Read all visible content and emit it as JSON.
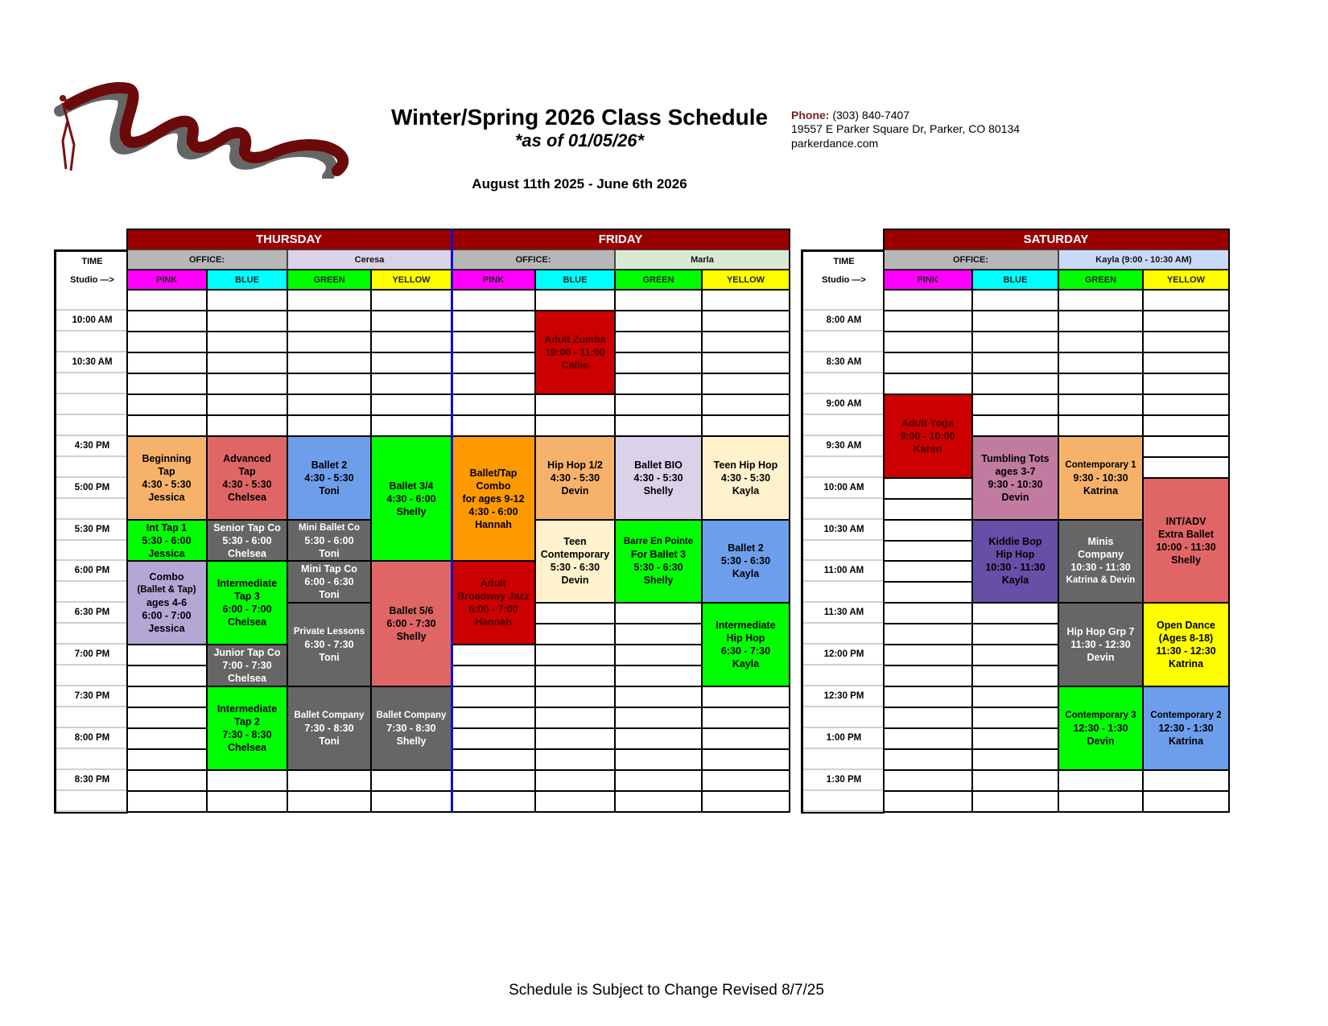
{
  "header": {
    "title": "Winter/Spring 2026 Class Schedule",
    "subtitle": "*as of 01/05/26*",
    "date_range": "August 11th 2025 - June 6th 2026",
    "contact": {
      "phone_label": "Phone:",
      "phone": "(303) 840-7407",
      "address": "19557 E Parker Square Dr, Parker, CO 80134",
      "website": "parkerdance.com"
    },
    "logo_colors": {
      "ribbon": "#6b0a0a",
      "shadow": "#666666"
    }
  },
  "footer": "Schedule is Subject to Change Revised 8/7/25",
  "time_header": {
    "time": "TIME",
    "studio": "Studio —>"
  },
  "studios": [
    {
      "name": "PINK",
      "color": "#ff00ff"
    },
    {
      "name": "BLUE",
      "color": "#00ffff"
    },
    {
      "name": "GREEN",
      "color": "#00ff00"
    },
    {
      "name": "YELLOW",
      "color": "#ffff00"
    }
  ],
  "tables": [
    {
      "time_labels": [
        "",
        "10:00 AM",
        "",
        "10:30 AM",
        "",
        "",
        "",
        "4:30 PM",
        "",
        "5:00 PM",
        "",
        "5:30 PM",
        "",
        "6:00 PM",
        "",
        "6:30 PM",
        "",
        "7:00 PM",
        "",
        "7:30 PM",
        "",
        "8:00 PM",
        "",
        "8:30 PM",
        ""
      ],
      "days": [
        {
          "name": "THURSDAY",
          "office": [
            {
              "label": "OFFICE:",
              "color": "#b7b7b7"
            },
            {
              "label": "Ceresa",
              "color": "#d9d2e9"
            }
          ],
          "classes": [
            {
              "studio": 0,
              "start": "4:30 PM",
              "end": "5:30 PM",
              "lines": [
                "Beginning",
                "Tap",
                "4:30 - 5:30",
                "Jessica"
              ],
              "color": "#f6b26b",
              "text_color": "#000000"
            },
            {
              "studio": 0,
              "start": "5:30 PM",
              "end": "6:00 PM",
              "lines": [
                "Int Tap 1",
                "5:30 - 6:00",
                "Jessica"
              ],
              "color": "#00ff00",
              "text_color": "#000000"
            },
            {
              "studio": 0,
              "start": "6:00 PM",
              "end": "7:00 PM",
              "lines": [
                "Combo",
                "(Ballet & Tap)",
                "ages 4-6",
                "6:00 - 7:00",
                "Jessica"
              ],
              "color": "#b4a7d6",
              "text_color": "#000000"
            },
            {
              "studio": 1,
              "start": "4:30 PM",
              "end": "5:30 PM",
              "lines": [
                "Advanced",
                "Tap",
                "4:30 - 5:30",
                "Chelsea"
              ],
              "color": "#e06666",
              "text_color": "#000000"
            },
            {
              "studio": 1,
              "start": "5:30 PM",
              "end": "6:00 PM",
              "lines": [
                "Senior Tap Co",
                "5:30 - 6:00",
                "Chelsea"
              ],
              "color": "#666666",
              "text_color": "#ffffff"
            },
            {
              "studio": 1,
              "start": "6:00 PM",
              "end": "7:00 PM",
              "lines": [
                "Intermediate",
                "Tap 3",
                "6:00 - 7:00",
                "Chelsea"
              ],
              "color": "#00ff00",
              "text_color": "#000000"
            },
            {
              "studio": 1,
              "start": "7:00 PM",
              "end": "7:30 PM",
              "lines": [
                "Junior Tap Co",
                "7:00 - 7:30",
                "Chelsea"
              ],
              "color": "#666666",
              "text_color": "#ffffff"
            },
            {
              "studio": 1,
              "start": "7:30 PM",
              "end": "8:30 PM",
              "lines": [
                "Intermediate",
                "Tap 2",
                "7:30 - 8:30",
                "Chelsea"
              ],
              "color": "#00ff00",
              "text_color": "#000000"
            },
            {
              "studio": 2,
              "start": "4:30 PM",
              "end": "5:30 PM",
              "lines": [
                "Ballet 2",
                "4:30 - 5:30",
                "Toni"
              ],
              "color": "#6d9eeb",
              "text_color": "#000000"
            },
            {
              "studio": 2,
              "start": "5:30 PM",
              "end": "6:00 PM",
              "lines": [
                "Mini Ballet Co",
                "5:30 - 6:00",
                "Toni"
              ],
              "color": "#666666",
              "text_color": "#ffffff"
            },
            {
              "studio": 2,
              "start": "6:00 PM",
              "end": "6:30 PM",
              "lines": [
                "Mini Tap Co",
                "6:00 - 6:30",
                "Toni"
              ],
              "color": "#666666",
              "text_color": "#ffffff"
            },
            {
              "studio": 2,
              "start": "6:30 PM",
              "end": "7:30 PM",
              "lines": [
                "Private Lessons",
                "6:30 - 7:30",
                "Toni"
              ],
              "color": "#666666",
              "text_color": "#ffffff"
            },
            {
              "studio": 2,
              "start": "7:30 PM",
              "end": "8:30 PM",
              "lines": [
                "Ballet Company",
                "7:30 - 8:30",
                "Toni"
              ],
              "color": "#666666",
              "text_color": "#ffffff"
            },
            {
              "studio": 3,
              "start": "4:30 PM",
              "end": "6:00 PM",
              "lines": [
                "Ballet 3/4",
                "4:30 - 6:00",
                "Shelly"
              ],
              "color": "#00ff00",
              "text_color": "#000000"
            },
            {
              "studio": 3,
              "start": "6:00 PM",
              "end": "7:30 PM",
              "lines": [
                "Ballet 5/6",
                "6:00 - 7:30",
                "Shelly"
              ],
              "color": "#e06666",
              "text_color": "#000000"
            },
            {
              "studio": 3,
              "start": "7:30 PM",
              "end": "8:30 PM",
              "lines": [
                "Ballet Company",
                "7:30 - 8:30",
                "Shelly"
              ],
              "color": "#666666",
              "text_color": "#ffffff"
            }
          ]
        },
        {
          "name": "FRIDAY",
          "office": [
            {
              "label": "OFFICE:",
              "color": "#b7b7b7"
            },
            {
              "label": "Marla",
              "color": "#d9ead3"
            }
          ],
          "classes": [
            {
              "studio": 0,
              "start": "4:30 PM",
              "end": "6:00 PM",
              "lines": [
                "Ballet/Tap",
                "Combo",
                "for ages 9-12",
                "4:30 - 6:00",
                "Hannah"
              ],
              "color": "#ff9900",
              "text_color": "#000000"
            },
            {
              "studio": 0,
              "start": "6:00 PM",
              "end": "7:00 PM",
              "lines": [
                "Adult",
                "Broadway Jazz",
                "6:00 - 7:00",
                "Hannah"
              ],
              "color": "#cc0000",
              "text_color": "#4a0000"
            },
            {
              "studio": 1,
              "start": "10:00 AM",
              "end": "11:00 AM",
              "lines": [
                "Adult Zumba",
                "10:00 - 11:00",
                "Callie"
              ],
              "color": "#cc0000",
              "text_color": "#4a0000"
            },
            {
              "studio": 1,
              "start": "4:30 PM",
              "end": "5:30 PM",
              "lines": [
                "Hip Hop 1/2",
                "4:30 - 5:30",
                "Devin"
              ],
              "color": "#f6b26b",
              "text_color": "#000000"
            },
            {
              "studio": 1,
              "start": "5:30 PM",
              "end": "6:30 PM",
              "lines": [
                "Teen",
                "Contemporary",
                "5:30 - 6:30",
                "Devin"
              ],
              "color": "#fff2cc",
              "text_color": "#000000"
            },
            {
              "studio": 2,
              "start": "4:30 PM",
              "end": "5:30 PM",
              "lines": [
                "Ballet BIO",
                "4:30 - 5:30",
                "Shelly"
              ],
              "color": "#d9d2e9",
              "text_color": "#000000"
            },
            {
              "studio": 2,
              "start": "5:30 PM",
              "end": "6:30 PM",
              "lines": [
                "Barre En Pointe",
                "For Ballet 3",
                "5:30 - 6:30",
                "Shelly"
              ],
              "color": "#00ff00",
              "text_color": "#000000"
            },
            {
              "studio": 3,
              "start": "4:30 PM",
              "end": "5:30 PM",
              "lines": [
                "Teen Hip Hop",
                "4:30 - 5:30",
                "Kayla"
              ],
              "color": "#fff2cc",
              "text_color": "#000000"
            },
            {
              "studio": 3,
              "start": "5:30 PM",
              "end": "6:30 PM",
              "lines": [
                "Ballet 2",
                "5:30 - 6:30",
                "Kayla"
              ],
              "color": "#6d9eeb",
              "text_color": "#000000"
            },
            {
              "studio": 3,
              "start": "6:30 PM",
              "end": "7:30 PM",
              "lines": [
                "Intermediate",
                "Hip Hop",
                "6:30 - 7:30",
                "Kayla"
              ],
              "color": "#00ff00",
              "text_color": "#000000"
            }
          ]
        }
      ]
    },
    {
      "time_labels": [
        "",
        "8:00 AM",
        "",
        "8:30 AM",
        "",
        "9:00 AM",
        "",
        "9:30 AM",
        "",
        "10:00 AM",
        "",
        "10:30 AM",
        "",
        "11:00 AM",
        "",
        "11:30 AM",
        "",
        "12:00 PM",
        "",
        "12:30 PM",
        "",
        "1:00 PM",
        "",
        "1:30 PM",
        ""
      ],
      "days": [
        {
          "name": "SATURDAY",
          "office": [
            {
              "label": "OFFICE:",
              "color": "#b7b7b7"
            },
            {
              "label": "Kayla (9:00 - 10:30 AM)",
              "color": "#c9daf8"
            }
          ],
          "classes": [
            {
              "studio": 0,
              "start": "9:00 AM",
              "end": "10:00 AM",
              "lines": [
                "Adult Yoga",
                "9:00 - 10:00",
                "Karen"
              ],
              "color": "#cc0000",
              "text_color": "#4a0000"
            },
            {
              "studio": 1,
              "start": "9:30 AM",
              "end": "10:30 AM",
              "lines": [
                "Tumbling Tots",
                "ages 3-7",
                "9:30 - 10:30",
                "Devin"
              ],
              "color": "#c27ba0",
              "text_color": "#000000"
            },
            {
              "studio": 1,
              "start": "10:30 AM",
              "end": "11:30 AM",
              "lines": [
                "Kiddie Bop",
                "Hip Hop",
                "10:30 - 11:30",
                "Kayla"
              ],
              "color": "#674ea7",
              "text_color": "#000000"
            },
            {
              "studio": 2,
              "start": "9:30 AM",
              "end": "10:30 AM",
              "lines": [
                "Contemporary 1",
                "9:30 - 10:30",
                "Katrina"
              ],
              "color": "#f6b26b",
              "text_color": "#000000"
            },
            {
              "studio": 2,
              "start": "10:30 AM",
              "end": "11:30 AM",
              "lines": [
                "Minis",
                "Company",
                "10:30 - 11:30",
                "Katrina & Devin"
              ],
              "color": "#666666",
              "text_color": "#ffffff"
            },
            {
              "studio": 2,
              "start": "11:30 AM",
              "end": "12:30 PM",
              "lines": [
                "Hip Hop Grp 7",
                "11:30 - 12:30",
                "Devin"
              ],
              "color": "#666666",
              "text_color": "#ffffff"
            },
            {
              "studio": 2,
              "start": "12:30 PM",
              "end": "1:30 PM",
              "lines": [
                "Contemporary 3",
                "12:30 - 1:30",
                "Devin"
              ],
              "color": "#00ff00",
              "text_color": "#000000"
            },
            {
              "studio": 3,
              "start": "10:00 AM",
              "end": "11:30 AM",
              "lines": [
                "INT/ADV",
                "Extra Ballet",
                "10:00 - 11:30",
                "Shelly"
              ],
              "color": "#e06666",
              "text_color": "#000000"
            },
            {
              "studio": 3,
              "start": "11:30 AM",
              "end": "12:30 PM",
              "lines": [
                "Open Dance",
                "(Ages 8-18)",
                "11:30 - 12:30",
                "Katrina"
              ],
              "color": "#ffff00",
              "text_color": "#000000"
            },
            {
              "studio": 3,
              "start": "12:30 PM",
              "end": "1:30 PM",
              "lines": [
                "Contemporary 2",
                "12:30 - 1:30",
                "Katrina"
              ],
              "color": "#6d9eeb",
              "text_color": "#000000"
            }
          ]
        }
      ]
    }
  ]
}
